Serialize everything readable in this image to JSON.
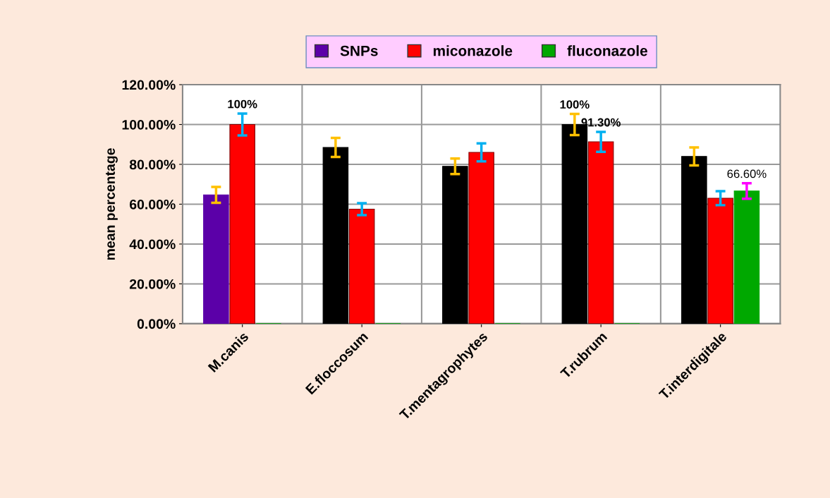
{
  "chart_data": {
    "type": "bar",
    "ylabel": "mean percentage",
    "categories": [
      "M.canis",
      "E.floccosum",
      "T.mentagrophytes",
      "T.rubrum",
      "T.interdigitale"
    ],
    "series": [
      {
        "name": "SNPs",
        "color": "#5b00a8",
        "colors": [
          "#5b00a8",
          "#000000",
          "#000000",
          "#000000",
          "#000000"
        ],
        "values": [
          64.7,
          88.5,
          79,
          100,
          84
        ],
        "errors": [
          4,
          4.8,
          3.9,
          5.3,
          4.5
        ],
        "value_labels": [
          null,
          null,
          null,
          "100%",
          null
        ]
      },
      {
        "name": "miconazole",
        "color": "#ff0000",
        "values": [
          100,
          57.5,
          86,
          91.3,
          63
        ],
        "errors": [
          5.5,
          3,
          4.5,
          5,
          3.5
        ],
        "value_labels": [
          "100%",
          null,
          null,
          "91.30%",
          null
        ]
      },
      {
        "name": "fluconazole",
        "color": "#00a800",
        "values": [
          0,
          0,
          0,
          0,
          66.6
        ],
        "errors": [
          null,
          null,
          null,
          null,
          3.9
        ],
        "value_labels": [
          null,
          null,
          null,
          null,
          "66.60%"
        ]
      }
    ],
    "ylim": [
      0,
      120
    ],
    "yticks": [
      {
        "value": 0,
        "label": "0.00%"
      },
      {
        "value": 20,
        "label": "20.00%"
      },
      {
        "value": 40,
        "label": "40.00%"
      },
      {
        "value": 60,
        "label": "60.00%"
      },
      {
        "value": 80,
        "label": "80.00%"
      },
      {
        "value": 100,
        "label": "100.00%"
      },
      {
        "value": 120,
        "label": "120.00%"
      }
    ],
    "grid": true,
    "legend": "top"
  }
}
